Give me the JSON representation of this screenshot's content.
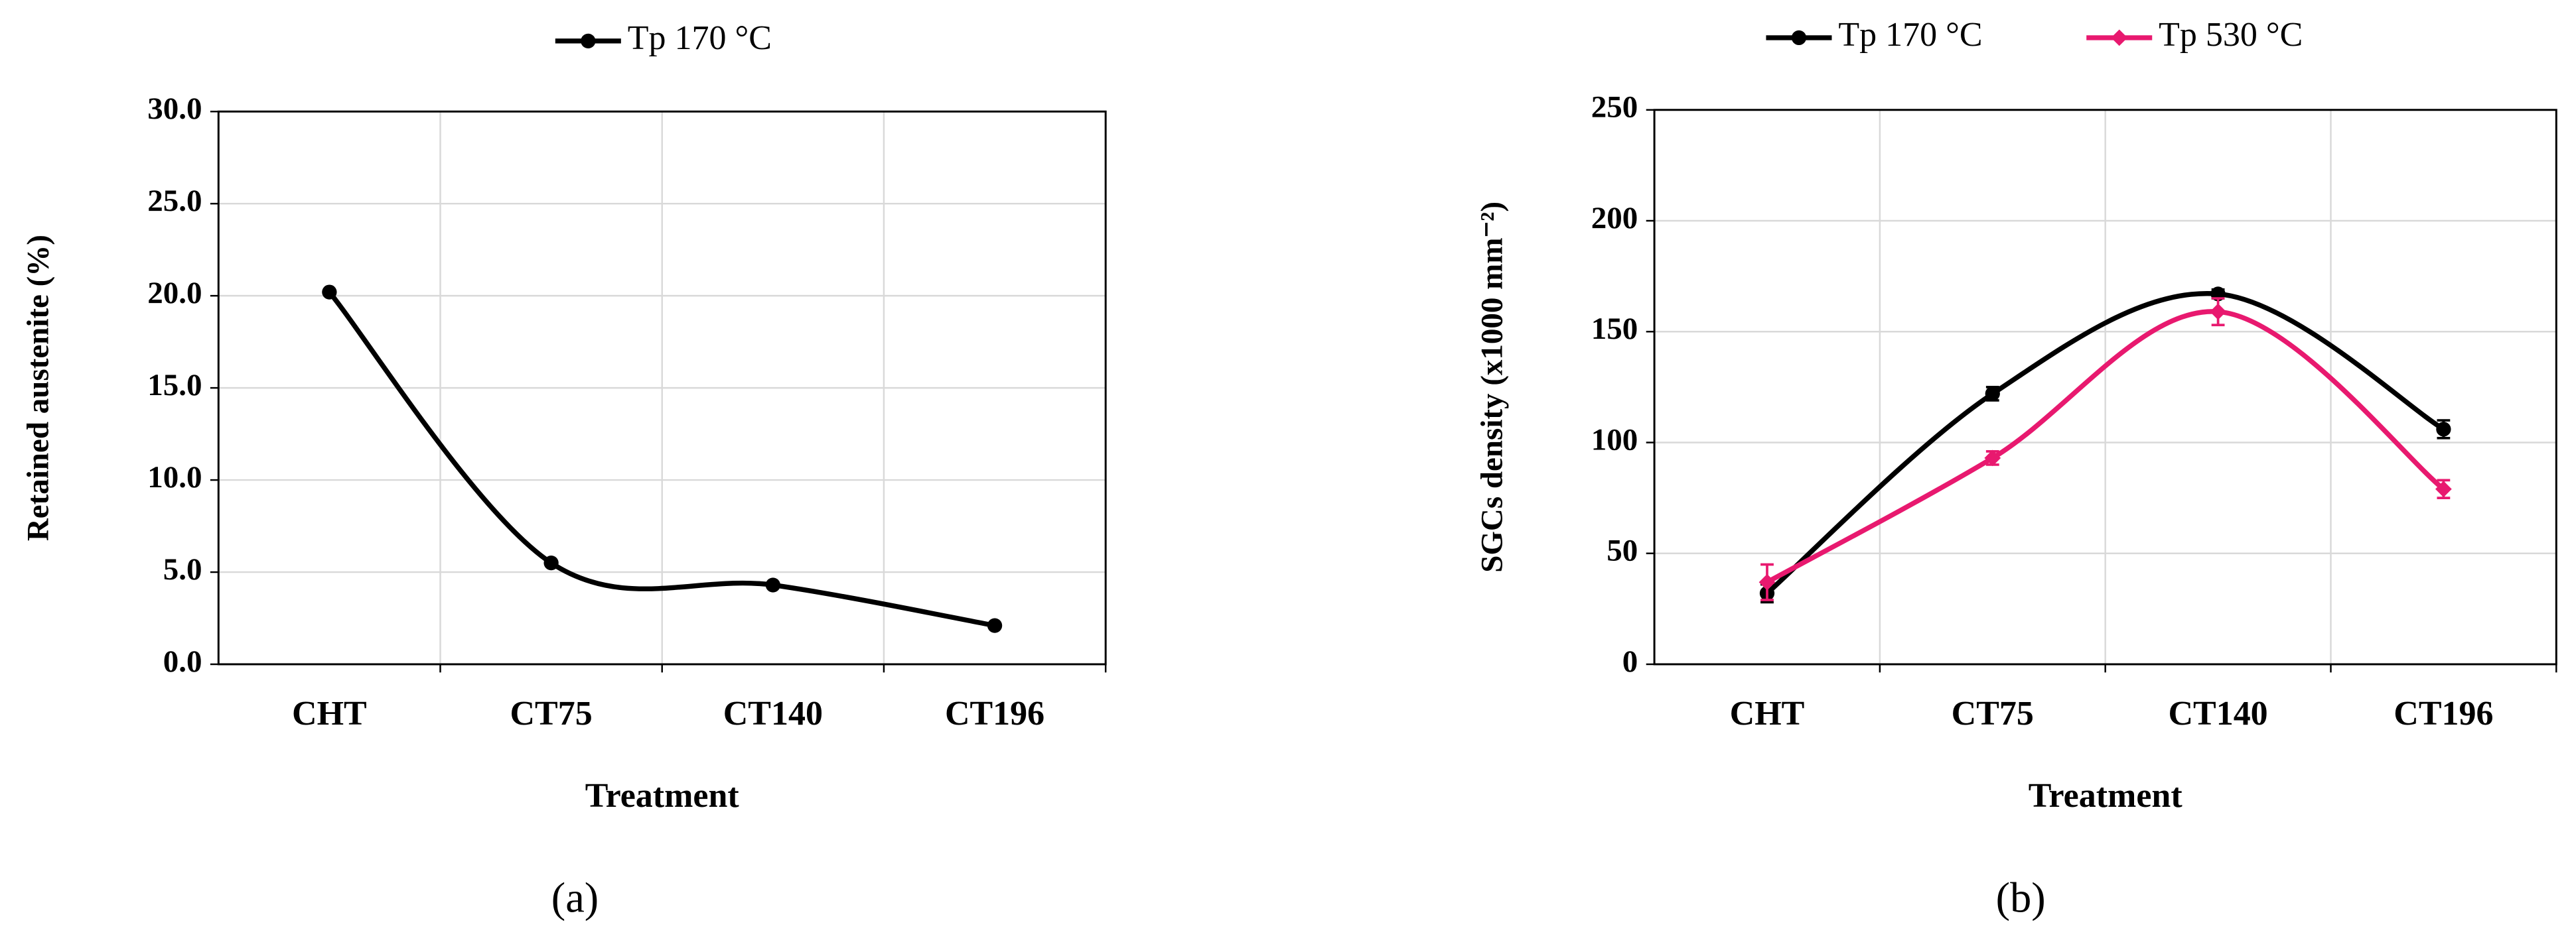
{
  "chart_data": [
    {
      "type": "line",
      "caption": "(a)",
      "xlabel": "Treatment",
      "ylabel": "Retained austenite (%)",
      "categories": [
        "CHT",
        "CT75",
        "CT140",
        "CT196"
      ],
      "series": [
        {
          "name": "Tp 170 °C",
          "color": "#000000",
          "marker": "circle",
          "values": [
            20.2,
            5.5,
            4.3,
            2.1
          ]
        }
      ],
      "ylim": [
        0,
        30
      ],
      "yticks": [
        {
          "value": 0,
          "label": "0.0"
        },
        {
          "value": 5,
          "label": "5.0"
        },
        {
          "value": 10,
          "label": "10.0"
        },
        {
          "value": 15,
          "label": "15.0"
        },
        {
          "value": 20,
          "label": "20.0"
        },
        {
          "value": 25,
          "label": "25.0"
        },
        {
          "value": 30,
          "label": "30.0"
        }
      ],
      "grid": true,
      "smooth": true
    },
    {
      "type": "line",
      "caption": "(b)",
      "xlabel": "Treatment",
      "ylabel": "SGCs density (x1000 mm⁻²)",
      "categories": [
        "CHT",
        "CT75",
        "CT140",
        "CT196"
      ],
      "series": [
        {
          "name": "Tp 170 °C",
          "color": "#000000",
          "marker": "circle",
          "values": [
            32,
            122,
            167,
            106
          ],
          "errors": [
            4,
            3,
            2,
            4
          ]
        },
        {
          "name": "Tp 530 °C",
          "color": "#e8196f",
          "marker": "diamond",
          "values": [
            37,
            93,
            159,
            79
          ],
          "errors": [
            8,
            3,
            6,
            4
          ]
        }
      ],
      "ylim": [
        0,
        250
      ],
      "yticks": [
        0,
        50,
        100,
        150,
        200,
        250
      ],
      "grid": true,
      "smooth": true
    }
  ]
}
